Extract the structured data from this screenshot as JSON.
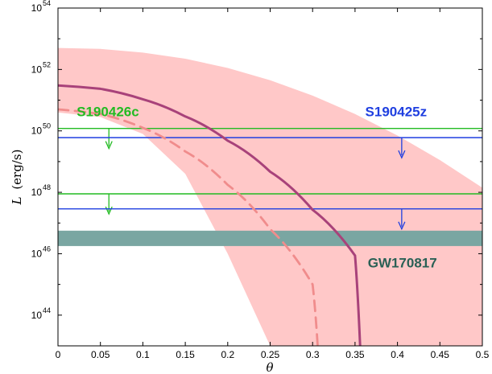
{
  "chart_data": {
    "type": "line",
    "xlabel": "θ",
    "ylabel_main": "L",
    "ylabel_unit": "(erg/s)",
    "xlim": [
      0,
      0.5
    ],
    "ylim_log10": [
      43,
      54
    ],
    "yscale": "log",
    "x_ticks": [
      0,
      0.05,
      0.1,
      0.15,
      0.2,
      0.25,
      0.3,
      0.35,
      0.4,
      0.45,
      0.5
    ],
    "x_tick_labels": [
      "0",
      "0.05",
      "0.1",
      "0.15",
      "0.2",
      "0.25",
      "0.3",
      "0.35",
      "0.4",
      "0.45",
      "0.5"
    ],
    "y_tick_exponents": [
      44,
      46,
      48,
      50,
      52,
      54
    ],
    "y_tick_base": "10",
    "colors": {
      "band": "#ffc8c8",
      "solid_curve": "#a8427a",
      "dashed_curve": "#f08c8c",
      "green": "#22bb22",
      "blue": "#1f3fe0",
      "gw_band": "#7aa6a2",
      "gw_text": "#2a6055"
    },
    "series": [
      {
        "style": "solid",
        "x": [
          0,
          0.05,
          0.1,
          0.15,
          0.2,
          0.25,
          0.3,
          0.35,
          0.356
        ],
        "y_log10": [
          51.48,
          51.37,
          51.03,
          50.47,
          49.68,
          48.67,
          47.43,
          45.94,
          43.0
        ]
      },
      {
        "style": "dashed",
        "x": [
          0,
          0.05,
          0.1,
          0.15,
          0.2,
          0.25,
          0.3,
          0.306
        ],
        "y_log10": [
          50.7,
          50.55,
          50.1,
          49.33,
          48.24,
          46.8,
          45.0,
          43.0
        ]
      }
    ],
    "band_region": {
      "x_upper": [
        0,
        0.05,
        0.1,
        0.15,
        0.2,
        0.25,
        0.3,
        0.35,
        0.4,
        0.45,
        0.5
      ],
      "y_upper_log10": [
        52.7,
        52.67,
        52.55,
        52.35,
        52.05,
        51.65,
        51.15,
        50.55,
        49.85,
        49.05,
        48.15
      ],
      "x_lower": [
        0,
        0.05,
        0.1,
        0.15,
        0.2,
        0.25,
        0.3,
        0.35,
        0.4,
        0.45,
        0.5
      ],
      "y_lower_log10": [
        50.6,
        50.45,
        49.9,
        48.6,
        46.0,
        43.0,
        43.0,
        43.0,
        43.0,
        43.0,
        43.0
      ]
    },
    "annotations": [
      {
        "label": "S190426c",
        "color": "green",
        "upper_limits_log10": [
          50.08,
          47.95
        ],
        "arrow_x": 0.06,
        "text_x": 0.022,
        "text_y_log10": 50.48
      },
      {
        "label": "S190425z",
        "color": "blue",
        "upper_limits_log10": [
          49.78,
          47.46
        ],
        "arrow_x": 0.405,
        "text_x": 0.362,
        "text_y_log10": 50.48
      },
      {
        "label": "GW170817",
        "color": "gw_text",
        "band_log10": [
          46.25,
          46.75
        ],
        "text_x": 0.365,
        "text_y_log10": 45.55
      }
    ]
  }
}
